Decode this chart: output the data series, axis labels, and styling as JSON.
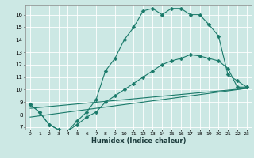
{
  "title": "",
  "xlabel": "Humidex (Indice chaleur)",
  "ylabel": "",
  "bg_color": "#cce8e4",
  "line_color": "#1a7a6a",
  "grid_color": "#ffffff",
  "xlim": [
    -0.5,
    23.5
  ],
  "ylim": [
    6.8,
    16.8
  ],
  "yticks": [
    7,
    8,
    9,
    10,
    11,
    12,
    13,
    14,
    15,
    16
  ],
  "xticks": [
    0,
    1,
    2,
    3,
    4,
    5,
    6,
    7,
    8,
    9,
    10,
    11,
    12,
    13,
    14,
    15,
    16,
    17,
    18,
    19,
    20,
    21,
    22,
    23
  ],
  "series1_x": [
    0,
    1,
    2,
    3,
    4,
    5,
    6,
    7,
    8,
    9,
    10,
    11,
    12,
    13,
    14,
    15,
    16,
    17,
    18,
    19,
    20,
    21,
    22,
    23
  ],
  "series1_y": [
    8.8,
    8.2,
    7.2,
    6.8,
    6.7,
    7.5,
    8.2,
    9.2,
    11.5,
    12.5,
    14.0,
    15.0,
    16.3,
    16.5,
    16.0,
    16.5,
    16.5,
    16.0,
    16.0,
    15.2,
    14.3,
    11.2,
    10.7,
    10.2
  ],
  "series2_x": [
    0,
    1,
    2,
    3,
    4,
    5,
    6,
    7,
    8,
    9,
    10,
    11,
    12,
    13,
    14,
    15,
    16,
    17,
    18,
    19,
    20,
    21,
    22,
    23
  ],
  "series2_y": [
    8.8,
    8.2,
    7.2,
    6.8,
    6.7,
    7.2,
    7.8,
    8.2,
    9.0,
    9.5,
    10.0,
    10.5,
    11.0,
    11.5,
    12.0,
    12.3,
    12.5,
    12.8,
    12.7,
    12.5,
    12.3,
    11.7,
    10.2,
    10.2
  ],
  "series3_x": [
    0,
    23
  ],
  "series3_y": [
    7.8,
    10.1
  ],
  "series4_x": [
    0,
    23
  ],
  "series4_y": [
    8.5,
    10.1
  ],
  "markersize": 2.5
}
